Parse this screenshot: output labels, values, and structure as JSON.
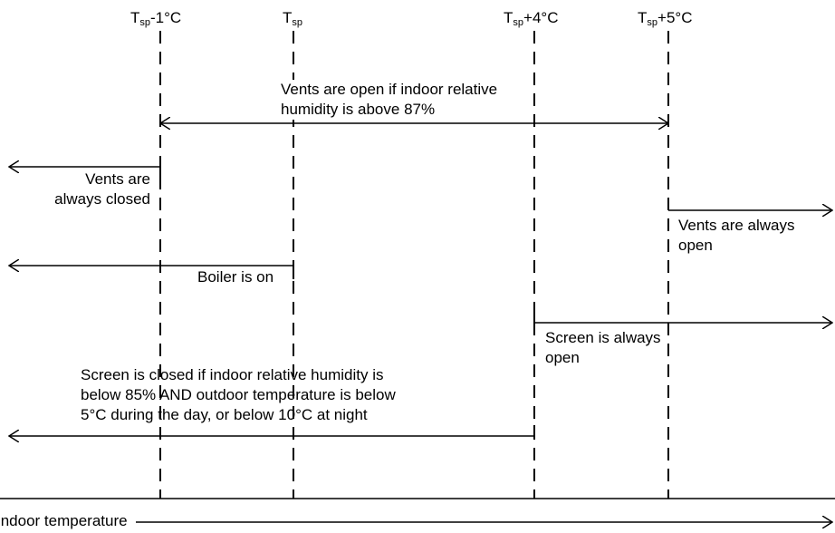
{
  "thresholds": [
    {
      "base": "T",
      "sub": "sp",
      "suffix": "-1°C"
    },
    {
      "base": "T",
      "sub": "sp",
      "suffix": ""
    },
    {
      "base": "T",
      "sub": "sp",
      "suffix": "+4°C"
    },
    {
      "base": "T",
      "sub": "sp",
      "suffix": "+5°C"
    }
  ],
  "labels": {
    "vents_humidity_line1": "Vents are open if indoor relative",
    "vents_humidity_line2": "humidity is above 87%",
    "vents_closed_line1": "Vents are",
    "vents_closed_line2": "always closed",
    "vents_open_line1": "Vents are always",
    "vents_open_line2": "open",
    "boiler_on": "Boiler is on",
    "screen_open_line1": "Screen is always",
    "screen_open_line2": "open",
    "screen_closed_line1": "Screen is closed if indoor relative humidity is",
    "screen_closed_line2": "below 85% AND outdoor temperature is below",
    "screen_closed_line3": "5°C during the day, or below 10°C at night",
    "axis_label": "Indoor temperature"
  }
}
